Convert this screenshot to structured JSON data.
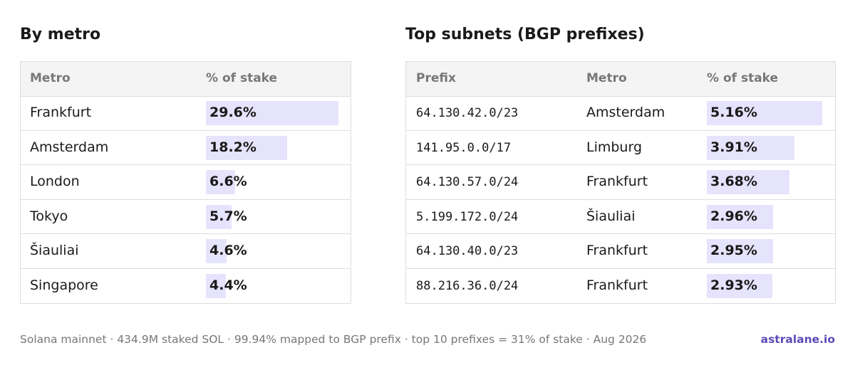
{
  "left": {
    "title": "By metro",
    "headers": [
      "Metro",
      "% of stake"
    ],
    "rows": [
      {
        "metro": "Frankfurt",
        "stake": {
          "value": 29.6,
          "label": "29.6%"
        }
      },
      {
        "metro": "Amsterdam",
        "stake": {
          "value": 18.2,
          "label": "18.2%"
        }
      },
      {
        "metro": "London",
        "stake": {
          "value": 6.6,
          "label": "6.6%"
        }
      },
      {
        "metro": "Tokyo",
        "stake": {
          "value": 5.7,
          "label": "5.7%"
        }
      },
      {
        "metro": "Šiauliai",
        "stake": {
          "value": 4.6,
          "label": "4.6%"
        }
      },
      {
        "metro": "Singapore",
        "stake": {
          "value": 4.4,
          "label": "4.4%"
        }
      }
    ]
  },
  "right": {
    "title": "Top subnets (BGP prefixes)",
    "headers": [
      "Prefix",
      "Metro",
      "% of stake"
    ],
    "rows": [
      {
        "prefix": "64.130.42.0/23",
        "metro": "Amsterdam",
        "stake": {
          "value": 5.16,
          "label": "5.16%"
        }
      },
      {
        "prefix": "141.95.0.0/17",
        "metro": "Limburg",
        "stake": {
          "value": 3.91,
          "label": "3.91%"
        }
      },
      {
        "prefix": "64.130.57.0/24",
        "metro": "Frankfurt",
        "stake": {
          "value": 3.68,
          "label": "3.68%"
        }
      },
      {
        "prefix": "5.199.172.0/24",
        "metro": "Šiauliai",
        "stake": {
          "value": 2.96,
          "label": "2.96%"
        }
      },
      {
        "prefix": "64.130.40.0/23",
        "metro": "Frankfurt",
        "stake": {
          "value": 2.95,
          "label": "2.95%"
        }
      },
      {
        "prefix": "88.216.36.0/24",
        "metro": "Frankfurt",
        "stake": {
          "value": 2.93,
          "label": "2.93%"
        }
      }
    ]
  },
  "footer": {
    "note": "Solana mainnet · 434.9M staked SOL · 99.94% mapped to BGP prefix · top 10 prefixes = 31% of stake · Aug 2026",
    "brand": "astralane.io"
  }
}
